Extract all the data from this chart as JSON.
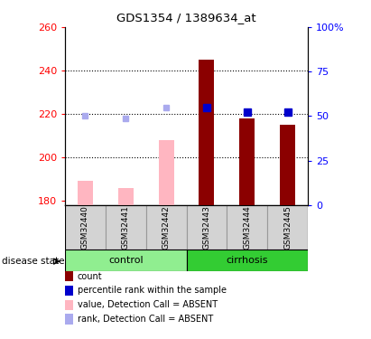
{
  "title": "GDS1354 / 1389634_at",
  "samples": [
    "GSM32440",
    "GSM32441",
    "GSM32442",
    "GSM32443",
    "GSM32444",
    "GSM32445"
  ],
  "ylim_left": [
    178,
    260
  ],
  "ylim_right": [
    0,
    100
  ],
  "yticks_left": [
    180,
    200,
    220,
    240,
    260
  ],
  "yticks_right": [
    0,
    25,
    50,
    75,
    100
  ],
  "ytick_labels_right": [
    "0",
    "25",
    "50",
    "75",
    "100%"
  ],
  "bar_values": [
    null,
    null,
    null,
    245,
    218,
    215
  ],
  "bar_color": "#8B0000",
  "bar_absent_values": [
    189,
    186,
    208,
    null,
    null,
    null
  ],
  "bar_absent_color": "#FFB6C1",
  "rank_marker_values": [
    219,
    218,
    223,
    223,
    221,
    221
  ],
  "rank_marker_absent": [
    true,
    true,
    true,
    false,
    false,
    false
  ],
  "rank_absent_color": "#AAAAEE",
  "rank_present_color": "#0000CC",
  "bar_base": 178,
  "dotted_lines": [
    200,
    220,
    240
  ],
  "legend_items": [
    {
      "color": "#8B0000",
      "label": "count"
    },
    {
      "color": "#0000CC",
      "label": "percentile rank within the sample"
    },
    {
      "color": "#FFB6C1",
      "label": "value, Detection Call = ABSENT"
    },
    {
      "color": "#AAAAEE",
      "label": "rank, Detection Call = ABSENT"
    }
  ],
  "disease_state_label": "disease state",
  "control_color": "#90EE90",
  "cirrhosis_color": "#33CC33",
  "sample_box_color": "#D3D3D3",
  "sample_box_edge": "#999999"
}
